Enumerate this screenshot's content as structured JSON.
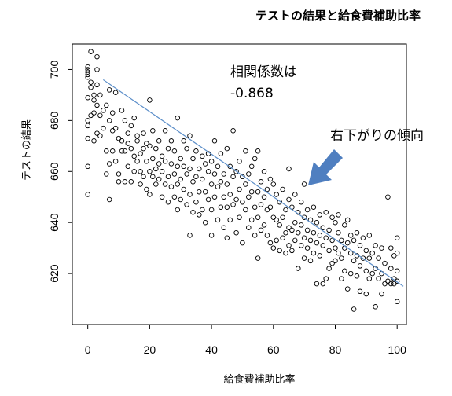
{
  "chart_data": {
    "type": "scatter",
    "title": "テストの結果と給食費補助比率",
    "xlabel": "給食費補助比率",
    "ylabel": "テストの結果",
    "xlim": [
      -5,
      103
    ],
    "ylim": [
      600,
      710
    ],
    "xticks": [
      0,
      20,
      40,
      60,
      80,
      100
    ],
    "yticks": [
      620,
      640,
      660,
      680,
      700
    ],
    "grid": false,
    "regression_line": {
      "x": [
        5,
        102
      ],
      "y": [
        696,
        615
      ],
      "color": "#5b8ec9"
    },
    "point_color": "#000000",
    "annotations": {
      "correlation_label": "相関係数は",
      "correlation_value": "-0.868",
      "trend_label": "右下がりの傾向"
    },
    "arrow_color": "#4f7fc0",
    "points": [
      [
        0,
        697
      ],
      [
        0,
        699
      ],
      [
        0,
        700
      ],
      [
        0,
        701
      ],
      [
        0,
        698
      ],
      [
        0,
        689
      ],
      [
        0,
        680
      ],
      [
        0,
        678
      ],
      [
        0,
        673
      ],
      [
        0,
        662
      ],
      [
        0,
        651
      ],
      [
        1,
        707
      ],
      [
        1,
        695
      ],
      [
        1,
        682
      ],
      [
        1,
        693
      ],
      [
        2,
        690
      ],
      [
        2,
        683
      ],
      [
        2,
        672
      ],
      [
        2,
        688
      ],
      [
        3,
        705
      ],
      [
        3,
        700
      ],
      [
        3,
        694
      ],
      [
        3,
        686
      ],
      [
        3,
        675
      ],
      [
        4,
        690
      ],
      [
        4,
        674
      ],
      [
        4,
        682
      ],
      [
        5,
        684
      ],
      [
        5,
        677
      ],
      [
        6,
        686
      ],
      [
        6,
        668
      ],
      [
        6,
        659
      ],
      [
        7,
        692
      ],
      [
        7,
        680
      ],
      [
        7,
        663
      ],
      [
        7,
        649
      ],
      [
        8,
        683
      ],
      [
        8,
        676
      ],
      [
        8,
        668
      ],
      [
        9,
        691
      ],
      [
        9,
        677
      ],
      [
        9,
        664
      ],
      [
        10,
        673
      ],
      [
        10,
        659
      ],
      [
        10,
        656
      ],
      [
        11,
        684
      ],
      [
        11,
        672
      ],
      [
        11,
        668
      ],
      [
        12,
        680
      ],
      [
        12,
        668
      ],
      [
        12,
        656
      ],
      [
        13,
        675
      ],
      [
        13,
        671
      ],
      [
        13,
        662
      ],
      [
        14,
        669
      ],
      [
        14,
        678
      ],
      [
        14,
        656
      ],
      [
        15,
        681
      ],
      [
        15,
        666
      ],
      [
        15,
        660
      ],
      [
        16,
        674
      ],
      [
        16,
        672
      ],
      [
        16,
        664
      ],
      [
        17,
        667
      ],
      [
        17,
        655
      ],
      [
        17,
        660
      ],
      [
        18,
        675
      ],
      [
        18,
        669
      ],
      [
        18,
        658
      ],
      [
        19,
        671
      ],
      [
        19,
        664
      ],
      [
        19,
        653
      ],
      [
        20,
        688
      ],
      [
        20,
        670
      ],
      [
        20,
        660
      ],
      [
        20,
        651
      ],
      [
        21,
        676
      ],
      [
        21,
        665
      ],
      [
        21,
        658
      ],
      [
        22,
        669
      ],
      [
        22,
        661
      ],
      [
        22,
        655
      ],
      [
        23,
        672
      ],
      [
        23,
        663
      ],
      [
        23,
        657
      ],
      [
        24,
        666
      ],
      [
        24,
        660
      ],
      [
        24,
        650
      ],
      [
        25,
        676
      ],
      [
        25,
        664
      ],
      [
        25,
        655
      ],
      [
        26,
        669
      ],
      [
        26,
        658
      ],
      [
        26,
        648
      ],
      [
        27,
        672
      ],
      [
        27,
        663
      ],
      [
        27,
        654
      ],
      [
        28,
        668
      ],
      [
        28,
        659
      ],
      [
        28,
        650
      ],
      [
        29,
        681
      ],
      [
        29,
        662
      ],
      [
        29,
        655
      ],
      [
        29,
        645
      ],
      [
        30,
        665
      ],
      [
        30,
        657
      ],
      [
        30,
        649
      ],
      [
        31,
        672
      ],
      [
        31,
        662
      ],
      [
        31,
        653
      ],
      [
        32,
        669
      ],
      [
        32,
        659
      ],
      [
        32,
        647
      ],
      [
        33,
        674
      ],
      [
        33,
        661
      ],
      [
        33,
        651
      ],
      [
        33,
        635
      ],
      [
        34,
        665
      ],
      [
        34,
        656
      ],
      [
        34,
        644
      ],
      [
        35,
        668
      ],
      [
        35,
        658
      ],
      [
        35,
        648
      ],
      [
        36,
        661
      ],
      [
        36,
        652
      ],
      [
        36,
        643
      ],
      [
        37,
        666
      ],
      [
        37,
        657
      ],
      [
        37,
        645
      ],
      [
        38,
        663
      ],
      [
        38,
        652
      ],
      [
        38,
        640
      ],
      [
        39,
        667
      ],
      [
        39,
        660
      ],
      [
        39,
        649
      ],
      [
        40,
        664
      ],
      [
        40,
        655
      ],
      [
        40,
        645
      ],
      [
        40,
        635
      ],
      [
        41,
        672
      ],
      [
        41,
        659
      ],
      [
        41,
        650
      ],
      [
        42,
        662
      ],
      [
        42,
        654
      ],
      [
        42,
        641
      ],
      [
        43,
        667
      ],
      [
        43,
        656
      ],
      [
        43,
        646
      ],
      [
        44,
        659
      ],
      [
        44,
        650
      ],
      [
        44,
        638
      ],
      [
        45,
        669
      ],
      [
        45,
        655
      ],
      [
        45,
        646
      ],
      [
        45,
        634
      ],
      [
        46,
        662
      ],
      [
        46,
        651
      ],
      [
        46,
        641
      ],
      [
        47,
        676
      ],
      [
        47,
        658
      ],
      [
        47,
        647
      ],
      [
        48,
        660
      ],
      [
        48,
        649
      ],
      [
        48,
        636
      ],
      [
        49,
        664
      ],
      [
        49,
        653
      ],
      [
        49,
        642
      ],
      [
        50,
        658
      ],
      [
        50,
        648
      ],
      [
        50,
        632
      ],
      [
        51,
        668
      ],
      [
        51,
        655
      ],
      [
        51,
        645
      ],
      [
        52,
        659
      ],
      [
        52,
        650
      ],
      [
        52,
        638
      ],
      [
        53,
        662
      ],
      [
        53,
        652
      ],
      [
        53,
        641
      ],
      [
        54,
        665
      ],
      [
        54,
        646
      ],
      [
        54,
        635
      ],
      [
        55,
        668
      ],
      [
        55,
        652
      ],
      [
        55,
        642
      ],
      [
        55,
        626
      ],
      [
        56,
        656
      ],
      [
        56,
        647
      ],
      [
        56,
        637
      ],
      [
        57,
        660
      ],
      [
        57,
        650
      ],
      [
        57,
        639
      ],
      [
        58,
        653
      ],
      [
        58,
        645
      ],
      [
        58,
        635
      ],
      [
        59,
        657
      ],
      [
        59,
        646
      ],
      [
        59,
        632
      ],
      [
        60,
        655
      ],
      [
        60,
        642
      ],
      [
        60,
        630
      ],
      [
        61,
        651
      ],
      [
        61,
        641
      ],
      [
        61,
        633
      ],
      [
        62,
        648
      ],
      [
        62,
        639
      ],
      [
        62,
        629
      ],
      [
        63,
        653
      ],
      [
        63,
        642
      ],
      [
        63,
        634
      ],
      [
        64,
        645
      ],
      [
        64,
        636
      ],
      [
        64,
        628
      ],
      [
        65,
        661
      ],
      [
        65,
        649
      ],
      [
        65,
        638
      ],
      [
        65,
        631
      ],
      [
        66,
        646
      ],
      [
        66,
        637
      ],
      [
        66,
        629
      ],
      [
        67,
        651
      ],
      [
        67,
        640
      ],
      [
        67,
        633
      ],
      [
        68,
        644
      ],
      [
        68,
        636
      ],
      [
        68,
        622
      ],
      [
        69,
        648
      ],
      [
        69,
        639
      ],
      [
        69,
        631
      ],
      [
        70,
        655
      ],
      [
        70,
        642
      ],
      [
        70,
        634
      ],
      [
        70,
        626
      ],
      [
        71,
        645
      ],
      [
        71,
        637
      ],
      [
        71,
        630
      ],
      [
        72,
        641
      ],
      [
        72,
        633
      ],
      [
        72,
        625
      ],
      [
        73,
        646
      ],
      [
        73,
        636
      ],
      [
        73,
        628
      ],
      [
        74,
        640
      ],
      [
        74,
        632
      ],
      [
        74,
        616
      ],
      [
        75,
        643
      ],
      [
        75,
        635
      ],
      [
        75,
        627
      ],
      [
        76,
        638
      ],
      [
        76,
        631
      ],
      [
        76,
        616
      ],
      [
        77,
        644
      ],
      [
        77,
        634
      ],
      [
        77,
        618
      ],
      [
        78,
        637
      ],
      [
        78,
        629
      ],
      [
        78,
        622
      ],
      [
        79,
        642
      ],
      [
        79,
        633
      ],
      [
        79,
        624
      ],
      [
        80,
        640
      ],
      [
        80,
        630
      ],
      [
        80,
        625
      ],
      [
        81,
        643
      ],
      [
        81,
        636
      ],
      [
        81,
        628
      ],
      [
        82,
        633
      ],
      [
        82,
        626
      ],
      [
        82,
        618
      ],
      [
        83,
        639
      ],
      [
        83,
        630
      ],
      [
        83,
        621
      ],
      [
        84,
        641
      ],
      [
        84,
        632
      ],
      [
        84,
        614
      ],
      [
        85,
        635
      ],
      [
        85,
        628
      ],
      [
        85,
        620
      ],
      [
        86,
        633
      ],
      [
        86,
        625
      ],
      [
        86,
        606
      ],
      [
        87,
        636
      ],
      [
        87,
        627
      ],
      [
        87,
        619
      ],
      [
        88,
        631
      ],
      [
        88,
        623
      ],
      [
        88,
        613
      ],
      [
        89,
        634
      ],
      [
        89,
        626
      ],
      [
        90,
        629
      ],
      [
        90,
        621
      ],
      [
        90,
        612
      ],
      [
        91,
        635
      ],
      [
        91,
        626
      ],
      [
        91,
        618
      ],
      [
        92,
        628
      ],
      [
        92,
        620
      ],
      [
        93,
        631
      ],
      [
        93,
        622
      ],
      [
        93,
        607
      ],
      [
        94,
        626
      ],
      [
        94,
        618
      ],
      [
        95,
        630
      ],
      [
        95,
        620
      ],
      [
        95,
        612
      ],
      [
        96,
        624
      ],
      [
        96,
        616
      ],
      [
        97,
        650
      ],
      [
        97,
        617
      ],
      [
        98,
        630
      ],
      [
        98,
        622
      ],
      [
        98,
        616
      ],
      [
        99,
        627
      ],
      [
        99,
        618
      ],
      [
        99,
        616
      ],
      [
        100,
        634
      ],
      [
        100,
        628
      ],
      [
        100,
        621
      ],
      [
        100,
        617
      ],
      [
        100,
        609
      ]
    ]
  }
}
